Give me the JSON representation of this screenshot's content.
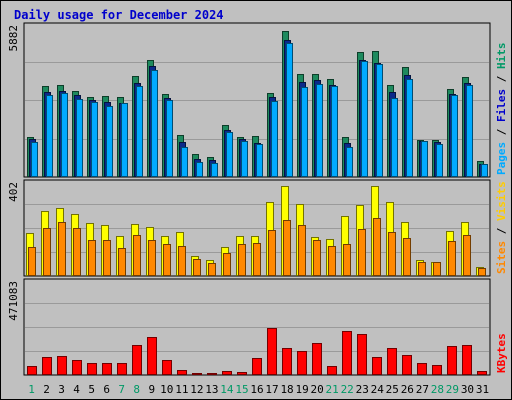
{
  "chart_data": {
    "title": "Daily usage for December 2024",
    "type": "bar",
    "x_labels": [
      "1",
      "2",
      "3",
      "4",
      "5",
      "6",
      "7",
      "8",
      "9",
      "10",
      "11",
      "12",
      "13",
      "14",
      "15",
      "16",
      "17",
      "18",
      "19",
      "20",
      "21",
      "22",
      "23",
      "24",
      "25",
      "26",
      "27",
      "28",
      "29",
      "30",
      "31"
    ],
    "weekend_days": [
      "1",
      "7",
      "8",
      "14",
      "15",
      "21",
      "22",
      "28",
      "29"
    ],
    "panels": [
      {
        "name": "hits-files-pages",
        "ymax_label": "5882",
        "ymax": 5882,
        "right_label": [
          "Pages",
          "Files",
          "Hits"
        ],
        "right_label_colors": [
          "#00aaff",
          "#0000cc",
          "#009966"
        ],
        "right_label_separator": " / ",
        "series": [
          {
            "name": "Hits",
            "color": "#1e8a5e",
            "values": [
              1540,
              3540,
              3560,
              3310,
              3100,
              3130,
              3090,
              3900,
              4530,
              3220,
              1640,
              900,
              770,
              2030,
              1560,
              1580,
              3240,
              5640,
              4000,
              4000,
              3800,
              1540,
              4850,
              4880,
              3570,
              4240,
              1440,
              1440,
              3400,
              3870,
              620
            ]
          },
          {
            "name": "Files",
            "color": "#0a2a8a",
            "values": [
              1460,
              3290,
              3340,
              3160,
              2990,
              2920,
              2860,
              3640,
              4290,
              3050,
              1360,
              700,
              670,
              1810,
              1480,
              1310,
              3080,
              5300,
              3670,
              3740,
              3550,
              1330,
              4540,
              4430,
              3280,
              3940,
              1390,
              1360,
              3220,
              3630,
              520
            ]
          },
          {
            "name": "Pages",
            "color": "#00aaff",
            "values": [
              1350,
              3170,
              3240,
              3000,
              2890,
              2740,
              2850,
              3530,
              4150,
              2990,
              1180,
              590,
              560,
              1740,
              1390,
              1260,
              2960,
              5200,
              3480,
              3610,
              3520,
              1180,
              4500,
              4360,
              3040,
              3800,
              1380,
              1260,
              3180,
              3550,
              490
            ]
          }
        ]
      },
      {
        "name": "visits-sites",
        "ymax_label": "402",
        "ymax": 402,
        "right_label": [
          "Sites",
          "Visits"
        ],
        "right_label_colors": [
          "#ff8800",
          "#ffcc00"
        ],
        "right_label_separator": " / ",
        "series": [
          {
            "name": "Visits",
            "color": "#ffff00",
            "values": [
              185,
              278,
              290,
              266,
              225,
              220,
              173,
              222,
              208,
              172,
              188,
              85,
              70,
              123,
              170,
              170,
              318,
              385,
              310,
              168,
              158,
              256,
              303,
              385,
              315,
              230,
              70,
              60,
              193,
              230,
              40
            ]
          },
          {
            "name": "Sites",
            "color": "#ff8800",
            "values": [
              125,
              205,
              233,
              207,
              155,
              152,
              118,
              175,
              152,
              136,
              130,
              73,
              55,
              100,
              135,
              140,
              198,
              240,
              216,
              152,
              130,
              138,
              200,
              248,
              190,
              164,
              60,
              60,
              150,
              175,
              35
            ]
          }
        ]
      },
      {
        "name": "kbytes",
        "ymax_label": "471083",
        "ymax": 471083,
        "right_label": [
          "KBytes"
        ],
        "right_label_colors": [
          "#ff0000"
        ],
        "series": [
          {
            "name": "KBytes",
            "color": "#ff0000",
            "values": [
              43000,
              90000,
              96000,
              76000,
              60000,
              58000,
              60000,
              150000,
              189000,
              76000,
              25000,
              9500,
              11500,
              19000,
              16000,
              86000,
              234000,
              136000,
              121000,
              160000,
              44000,
              223000,
              205000,
              90000,
              136000,
              100000,
              58000,
              52000,
              143000,
              151000,
              18000
            ]
          }
        ]
      }
    ]
  }
}
